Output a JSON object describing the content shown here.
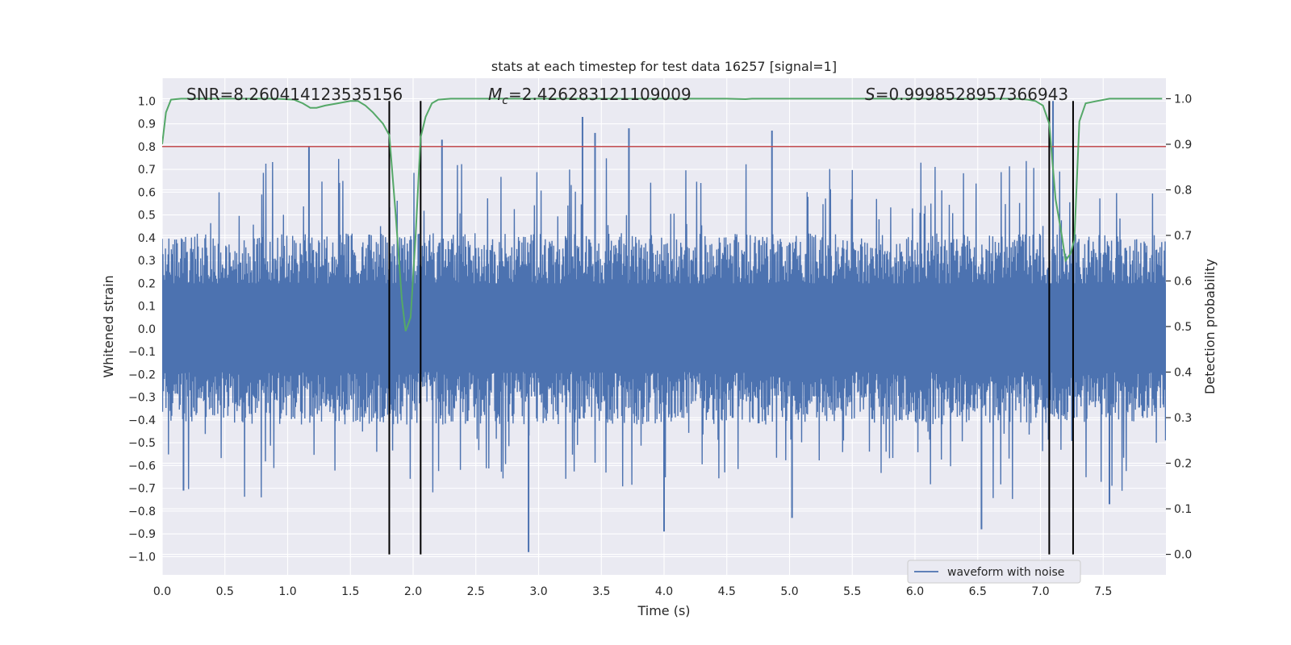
{
  "chart_data": {
    "type": "line",
    "title": "stats at each timestep for test data 16257 [signal=1]",
    "xlabel": "Time (s)",
    "ylabel_left": "Whitened strain",
    "ylabel_right": "Detection probability",
    "xlim": [
      0.0,
      8.0
    ],
    "ylim_left": [
      -1.08,
      1.1
    ],
    "ylim_right": [
      -0.045,
      1.045
    ],
    "x_ticks": [
      0.0,
      0.5,
      1.0,
      1.5,
      2.0,
      2.5,
      3.0,
      3.5,
      4.0,
      4.5,
      5.0,
      5.5,
      6.0,
      6.5,
      7.0,
      7.5
    ],
    "x_tick_labels": [
      "0.0",
      "0.5",
      "1.0",
      "1.5",
      "2.0",
      "2.5",
      "3.0",
      "3.5",
      "4.0",
      "4.5",
      "5.0",
      "5.5",
      "6.0",
      "6.5",
      "7.0",
      "7.5"
    ],
    "y_left_ticks": [
      1.0,
      0.9,
      0.8,
      0.7,
      0.6,
      0.5,
      0.4,
      0.3,
      0.2,
      0.1,
      0.0,
      -0.1,
      -0.2,
      -0.3,
      -0.4,
      -0.5,
      -0.6,
      -0.7,
      -0.8,
      -0.9,
      -1.0
    ],
    "y_left_tick_labels": [
      "1.0",
      "0.9",
      "0.8",
      "0.7",
      "0.6",
      "0.5",
      "0.4",
      "0.3",
      "0.2",
      "0.1",
      "0.0",
      "−0.1",
      "−0.2",
      "−0.3",
      "−0.4",
      "−0.5",
      "−0.6",
      "−0.7",
      "−0.8",
      "−0.9",
      "−1.0"
    ],
    "y_right_ticks": [
      1.0,
      0.9,
      0.8,
      0.7,
      0.6,
      0.5,
      0.4,
      0.3,
      0.2,
      0.1,
      0.0
    ],
    "y_right_tick_labels": [
      "1.0",
      "0.9",
      "0.8",
      "0.7",
      "0.6",
      "0.5",
      "0.4",
      "0.3",
      "0.2",
      "0.1",
      "0.0"
    ],
    "grid": true,
    "threshold_line": {
      "y": 0.8,
      "axis": "left",
      "color": "#c44e52"
    },
    "vertical_markers": [
      {
        "x": 1.81,
        "y_range": [
          -0.99,
          1.0
        ]
      },
      {
        "x": 2.06,
        "y_range": [
          -0.99,
          1.0
        ]
      },
      {
        "x": 7.07,
        "y_range": [
          -0.99,
          1.0
        ]
      },
      {
        "x": 7.26,
        "y_range": [
          -0.99,
          1.0
        ]
      }
    ],
    "annotations": {
      "snr": "SNR=8.260414123535156",
      "mc_symbol": "M",
      "mc_subscript": "c",
      "mc_value": "=2.426283121109009",
      "s_symbol": "S",
      "s_value": "=0.9998528957366943"
    },
    "series": [
      {
        "name": "waveform with noise",
        "axis": "left",
        "color": "#4c72b0",
        "kind": "noise",
        "duration_s": 8.0,
        "envelope_typical": [
          -0.42,
          0.42
        ],
        "dense_core": [
          -0.19,
          0.2
        ],
        "notable_peaks": [
          {
            "x": 0.17,
            "y": -0.71
          },
          {
            "x": 1.17,
            "y": 0.8
          },
          {
            "x": 2.23,
            "y": 0.83
          },
          {
            "x": 2.92,
            "y": -0.98
          },
          {
            "x": 3.35,
            "y": 0.93
          },
          {
            "x": 3.45,
            "y": 0.86
          },
          {
            "x": 3.72,
            "y": 0.88
          },
          {
            "x": 4.0,
            "y": -0.89
          },
          {
            "x": 4.86,
            "y": 0.87
          },
          {
            "x": 5.02,
            "y": -0.83
          },
          {
            "x": 6.53,
            "y": -0.88
          },
          {
            "x": 7.1,
            "y": 1.0
          },
          {
            "x": 7.55,
            "y": -0.77
          }
        ]
      },
      {
        "name": "detection probability",
        "axis": "right",
        "color": "#55a868",
        "kind": "line",
        "x": [
          0.0,
          0.03,
          0.07,
          0.15,
          0.3,
          0.5,
          0.7,
          0.9,
          1.05,
          1.12,
          1.18,
          1.23,
          1.3,
          1.4,
          1.5,
          1.56,
          1.62,
          1.68,
          1.76,
          1.81,
          1.86,
          1.91,
          1.94,
          1.98,
          2.02,
          2.06,
          2.1,
          2.15,
          2.2,
          2.3,
          2.5,
          3.0,
          3.5,
          4.0,
          4.5,
          4.65,
          4.7,
          5.0,
          5.5,
          6.0,
          6.5,
          6.8,
          6.9,
          6.96,
          7.02,
          7.07,
          7.12,
          7.17,
          7.2,
          7.24,
          7.27,
          7.31,
          7.36,
          7.45,
          7.55,
          7.7,
          7.85,
          7.97
        ],
        "y": [
          0.9,
          0.97,
          0.998,
          1.0,
          1.0,
          1.0,
          1.0,
          1.0,
          0.998,
          0.99,
          0.98,
          0.98,
          0.985,
          0.99,
          0.995,
          0.995,
          0.985,
          0.97,
          0.945,
          0.92,
          0.75,
          0.56,
          0.49,
          0.52,
          0.7,
          0.915,
          0.96,
          0.99,
          0.998,
          1.0,
          1.0,
          1.0,
          1.0,
          1.0,
          1.0,
          0.999,
          1.0,
          1.0,
          1.0,
          1.0,
          1.0,
          1.0,
          0.998,
          0.995,
          0.985,
          0.945,
          0.78,
          0.7,
          0.645,
          0.66,
          0.69,
          0.95,
          0.99,
          0.995,
          1.0,
          1.0,
          1.0,
          1.0
        ]
      }
    ],
    "legend": {
      "location": "lower-right",
      "entries": [
        "waveform with noise"
      ]
    }
  }
}
